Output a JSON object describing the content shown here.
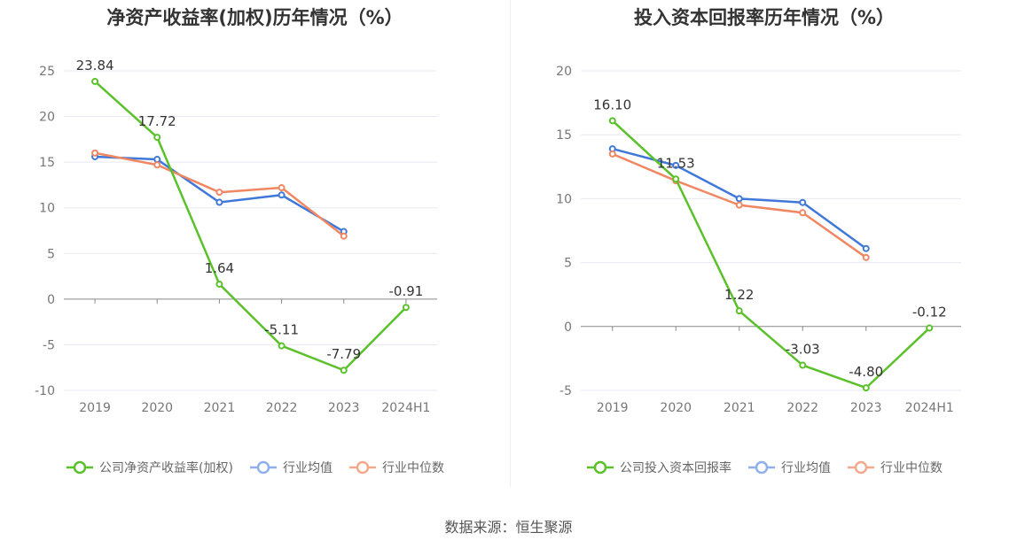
{
  "source": "数据来源：恒生聚源",
  "legend_colors": {
    "company": "#5bc12b",
    "industry_avg": "#8fb0ea",
    "industry_median": "#f3a98c"
  },
  "line_colors": {
    "company": "#5bc12b",
    "industry_avg": "#3f78d8",
    "industry_median": "#f08762"
  },
  "chart_data": [
    {
      "type": "line",
      "title": "净资产收益率(加权)历年情况（%）",
      "categories": [
        "2019",
        "2020",
        "2021",
        "2022",
        "2023",
        "2024H1"
      ],
      "ylim": [
        -10,
        25
      ],
      "yticks": [
        -10,
        -5,
        0,
        5,
        10,
        15,
        20,
        25
      ],
      "ytick_labels": [
        "-10",
        "-5",
        "0",
        "5",
        "10",
        "15",
        "20",
        "25"
      ],
      "grid": true,
      "legend_position": "bottom",
      "series": [
        {
          "name": "公司净资产收益率(加权)",
          "key": "company",
          "values": [
            23.84,
            17.72,
            1.64,
            -5.11,
            -7.79,
            -0.91
          ],
          "labels": [
            "23.84",
            "17.72",
            "1.64",
            "-5.11",
            "-7.79",
            "-0.91"
          ]
        },
        {
          "name": "行业均值",
          "key": "industry_avg",
          "values": [
            15.6,
            15.3,
            10.6,
            11.4,
            7.4,
            null
          ]
        },
        {
          "name": "行业中位数",
          "key": "industry_median",
          "values": [
            16.0,
            14.7,
            11.7,
            12.2,
            6.9,
            null
          ]
        }
      ]
    },
    {
      "type": "line",
      "title": "投入资本回报率历年情况（%）",
      "categories": [
        "2019",
        "2020",
        "2021",
        "2022",
        "2023",
        "2024H1"
      ],
      "ylim": [
        -5,
        20
      ],
      "yticks": [
        -5,
        0,
        5,
        10,
        15,
        20
      ],
      "ytick_labels": [
        "-5",
        "0",
        "5",
        "10",
        "15",
        "20"
      ],
      "grid": true,
      "legend_position": "bottom",
      "series": [
        {
          "name": "公司投入资本回报率",
          "key": "company",
          "values": [
            16.1,
            11.53,
            1.22,
            -3.03,
            -4.8,
            -0.12
          ],
          "labels": [
            "16.10",
            "11.53",
            "1.22",
            "-3.03",
            "-4.80",
            "-0.12"
          ]
        },
        {
          "name": "行业均值",
          "key": "industry_avg",
          "values": [
            13.9,
            12.6,
            10.0,
            9.7,
            6.1,
            null
          ]
        },
        {
          "name": "行业中位数",
          "key": "industry_median",
          "values": [
            13.5,
            11.4,
            9.5,
            8.9,
            5.4,
            null
          ]
        }
      ]
    }
  ]
}
